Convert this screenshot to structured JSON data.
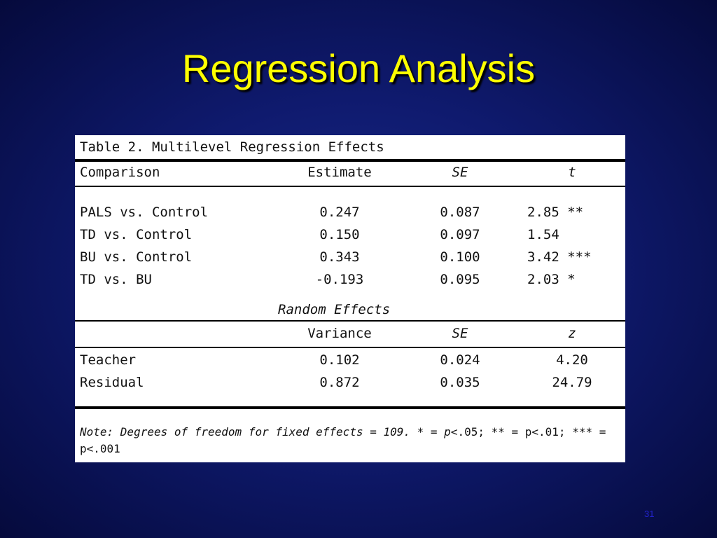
{
  "slide": {
    "title": "Regression Analysis",
    "number": "31"
  },
  "table": {
    "caption": "Table 2. Multilevel Regression Effects",
    "fixed_header": [
      "Comparison",
      "Estimate",
      "SE",
      "t"
    ],
    "fixed_rows": [
      [
        "PALS vs. Control",
        "0.247",
        "0.087",
        "2.85 **"
      ],
      [
        "TD vs. Control",
        "0.150",
        "0.097",
        "1.54"
      ],
      [
        "BU vs. Control",
        "0.343",
        "0.100",
        "3.42 ***"
      ],
      [
        "TD vs. BU",
        "-0.193",
        "0.095",
        "2.03 *"
      ]
    ],
    "random_title": "Random Effects",
    "random_header": [
      "",
      "Variance",
      "SE",
      "z"
    ],
    "random_rows": [
      [
        "Teacher",
        "0.102",
        "0.024",
        "4.20"
      ],
      [
        "Residual",
        "0.872",
        "0.035",
        "24.79"
      ]
    ],
    "note": {
      "prefix": "Note: Degrees of freedom for fixed effects = 109. * = p<",
      "a": ".05; ** = p<",
      "b": ".01; *** = p<",
      "c": ".001"
    }
  },
  "colors": {
    "background": "#0f1a6e",
    "title": "#ffff00",
    "table_bg": "#ffffff"
  }
}
